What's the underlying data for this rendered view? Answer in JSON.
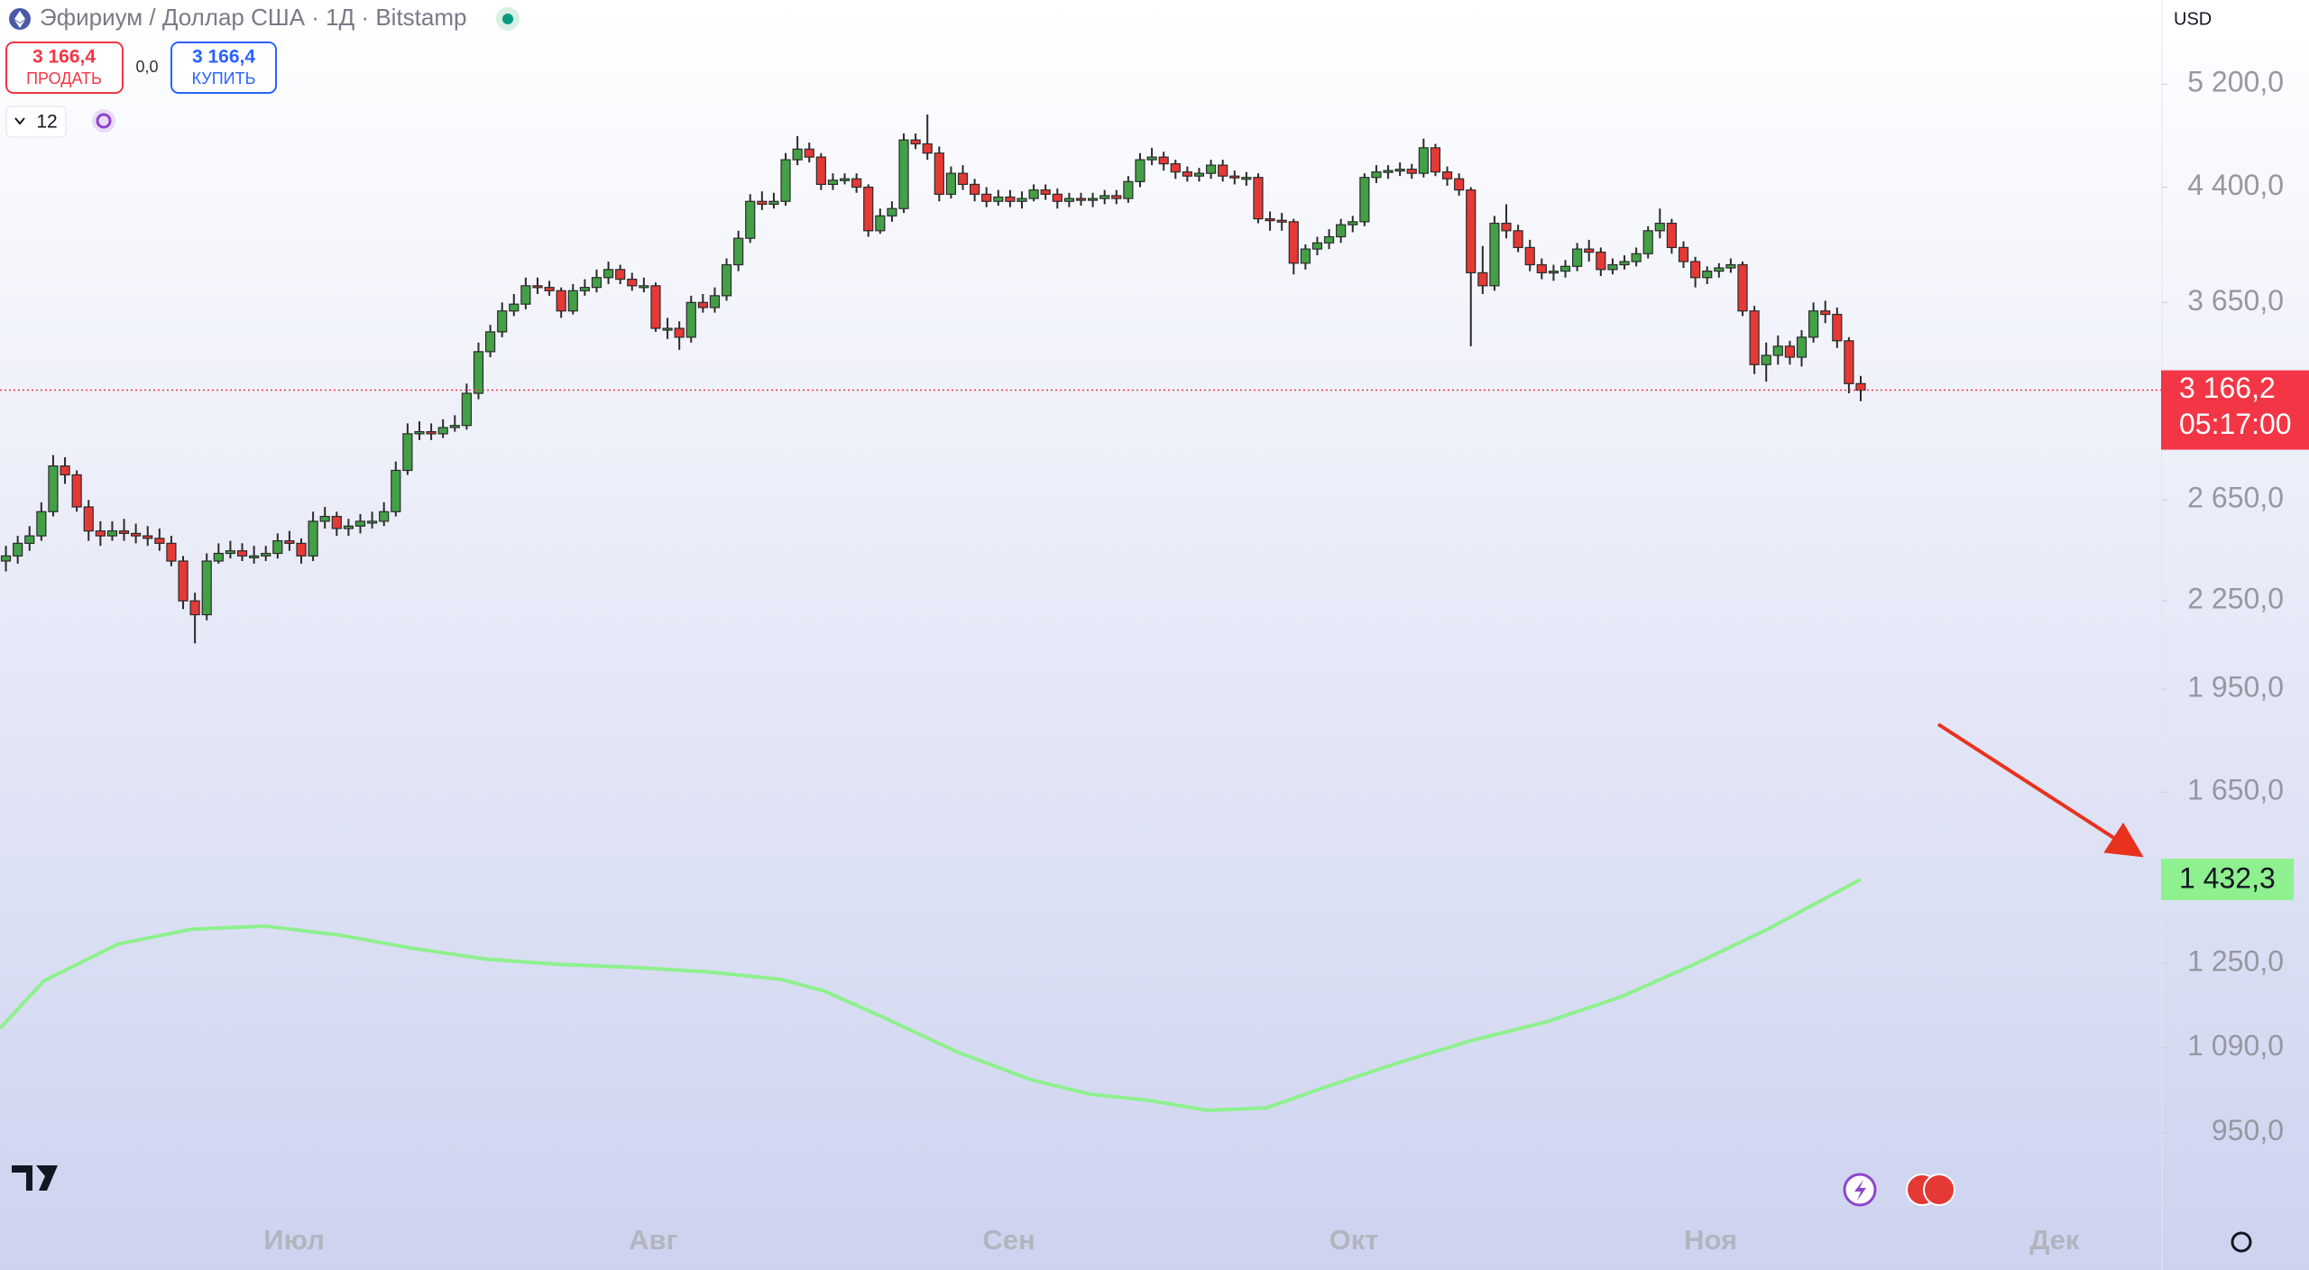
{
  "header": {
    "title": "Эфириум / Доллар США · 1Д · Bitstamp",
    "sell_price": "3 166,4",
    "sell_label": "ПРОДАТЬ",
    "spread": "0,0",
    "buy_price": "3 166,4",
    "buy_label": "КУПИТЬ",
    "interval": "12",
    "currency": "USD"
  },
  "chart_data": {
    "type": "candlestick",
    "log": true,
    "colors": {
      "up": "#43a047",
      "down": "#e53935",
      "outline": "#2b2b2b"
    },
    "open": [
      2400,
      2420,
      2470,
      2500,
      2600,
      2800,
      2760,
      2620,
      2520,
      2500,
      2520,
      2510,
      2500,
      2490,
      2470,
      2400,
      2250,
      2200,
      2400,
      2430,
      2440,
      2420,
      2420,
      2430,
      2480,
      2470,
      2420,
      2560,
      2580,
      2530,
      2540,
      2560,
      2560,
      2600,
      2780,
      2950,
      2960,
      2950,
      2980,
      2990,
      3150,
      3370,
      3480,
      3600,
      3640,
      3750,
      3740,
      3720,
      3600,
      3720,
      3740,
      3800,
      3850,
      3790,
      3750,
      3750,
      3500,
      3500,
      3450,
      3650,
      3620,
      3690,
      3880,
      4050,
      4300,
      4280,
      4300,
      4600,
      4680,
      4620,
      4420,
      4450,
      4460,
      4400,
      4100,
      4200,
      4250,
      4750,
      4720,
      4650,
      4350,
      4500,
      4420,
      4350,
      4300,
      4330,
      4300,
      4320,
      4380,
      4350,
      4300,
      4320,
      4310,
      4320,
      4340,
      4320,
      4440,
      4600,
      4620,
      4570,
      4510,
      4480,
      4500,
      4560,
      4480,
      4470,
      4470,
      4180,
      4170,
      4160,
      3890,
      3980,
      4020,
      4060,
      4140,
      4160,
      4470,
      4510,
      4520,
      4530,
      4500,
      4690,
      4510,
      4460,
      4380,
      3830,
      3750,
      4150,
      4100,
      3990,
      3880,
      3830,
      3840,
      3870,
      3980,
      3960,
      3850,
      3880,
      3900,
      3950,
      4100,
      4150,
      3990,
      3900,
      3800,
      3840,
      3860,
      3880,
      3600,
      3300,
      3350,
      3400,
      3340,
      3450,
      3600,
      3580,
      3430,
      3200
    ],
    "high": [
      2460,
      2500,
      2540,
      2640,
      2850,
      2840,
      2780,
      2650,
      2560,
      2560,
      2570,
      2550,
      2540,
      2530,
      2500,
      2420,
      2280,
      2430,
      2470,
      2480,
      2470,
      2460,
      2460,
      2510,
      2520,
      2490,
      2600,
      2620,
      2600,
      2570,
      2590,
      2600,
      2640,
      2820,
      3000,
      3010,
      3000,
      3020,
      3040,
      3200,
      3420,
      3520,
      3650,
      3700,
      3800,
      3800,
      3780,
      3740,
      3760,
      3790,
      3850,
      3900,
      3880,
      3830,
      3800,
      3770,
      3560,
      3540,
      3690,
      3700,
      3740,
      3920,
      4100,
      4350,
      4370,
      4360,
      4650,
      4780,
      4730,
      4650,
      4500,
      4500,
      4500,
      4420,
      4250,
      4300,
      4800,
      4800,
      4950,
      4700,
      4550,
      4560,
      4460,
      4400,
      4380,
      4380,
      4370,
      4420,
      4420,
      4390,
      4360,
      4360,
      4360,
      4380,
      4380,
      4480,
      4650,
      4690,
      4660,
      4600,
      4550,
      4540,
      4600,
      4600,
      4520,
      4510,
      4500,
      4230,
      4220,
      4180,
      4010,
      4060,
      4110,
      4180,
      4200,
      4500,
      4560,
      4560,
      4580,
      4570,
      4760,
      4720,
      4550,
      4500,
      4400,
      4000,
      4200,
      4280,
      4140,
      4040,
      3920,
      3880,
      3910,
      4020,
      4040,
      3990,
      3920,
      3940,
      3990,
      4130,
      4250,
      4180,
      4030,
      3930,
      3870,
      3890,
      3920,
      3900,
      3630,
      3420,
      3460,
      3430,
      3490,
      3650,
      3660,
      3620,
      3450,
      3240
    ],
    "low": [
      2360,
      2390,
      2440,
      2480,
      2580,
      2720,
      2600,
      2480,
      2460,
      2480,
      2480,
      2470,
      2460,
      2440,
      2380,
      2220,
      2100,
      2180,
      2390,
      2410,
      2400,
      2390,
      2400,
      2410,
      2440,
      2390,
      2400,
      2530,
      2500,
      2500,
      2510,
      2530,
      2540,
      2580,
      2760,
      2920,
      2920,
      2930,
      2960,
      2970,
      3120,
      3340,
      3450,
      3570,
      3610,
      3700,
      3690,
      3560,
      3580,
      3690,
      3710,
      3760,
      3760,
      3720,
      3710,
      3480,
      3440,
      3380,
      3420,
      3590,
      3590,
      3660,
      3840,
      4020,
      4240,
      4250,
      4270,
      4560,
      4580,
      4380,
      4380,
      4420,
      4360,
      4060,
      4080,
      4160,
      4220,
      4680,
      4600,
      4300,
      4320,
      4380,
      4300,
      4260,
      4270,
      4260,
      4250,
      4300,
      4310,
      4250,
      4260,
      4270,
      4260,
      4280,
      4280,
      4290,
      4400,
      4560,
      4520,
      4460,
      4440,
      4440,
      4460,
      4440,
      4420,
      4410,
      4150,
      4100,
      4100,
      3820,
      3850,
      3940,
      3980,
      4020,
      4090,
      4130,
      4430,
      4460,
      4480,
      4460,
      4470,
      4480,
      4410,
      4340,
      3400,
      3700,
      3720,
      4050,
      3960,
      3840,
      3790,
      3780,
      3800,
      3840,
      3900,
      3810,
      3820,
      3850,
      3870,
      3920,
      4050,
      3950,
      3860,
      3740,
      3760,
      3800,
      3830,
      3570,
      3250,
      3210,
      3300,
      3300,
      3290,
      3420,
      3530,
      3390,
      3150,
      3110
    ],
    "close": [
      2420,
      2470,
      2500,
      2600,
      2800,
      2760,
      2620,
      2520,
      2500,
      2520,
      2510,
      2500,
      2490,
      2470,
      2400,
      2250,
      2200,
      2400,
      2430,
      2440,
      2420,
      2420,
      2430,
      2480,
      2470,
      2420,
      2560,
      2580,
      2530,
      2540,
      2560,
      2560,
      2600,
      2780,
      2950,
      2960,
      2950,
      2980,
      2990,
      3150,
      3370,
      3480,
      3600,
      3640,
      3750,
      3740,
      3720,
      3600,
      3720,
      3740,
      3800,
      3850,
      3790,
      3750,
      3750,
      3500,
      3500,
      3450,
      3650,
      3620,
      3690,
      3880,
      4050,
      4300,
      4280,
      4300,
      4600,
      4680,
      4620,
      4420,
      4450,
      4460,
      4400,
      4100,
      4200,
      4250,
      4750,
      4720,
      4650,
      4350,
      4500,
      4420,
      4350,
      4300,
      4330,
      4300,
      4320,
      4380,
      4350,
      4300,
      4320,
      4310,
      4320,
      4340,
      4320,
      4440,
      4600,
      4620,
      4570,
      4510,
      4480,
      4500,
      4560,
      4480,
      4470,
      4470,
      4180,
      4170,
      4160,
      3890,
      3980,
      4020,
      4060,
      4140,
      4160,
      4470,
      4510,
      4520,
      4530,
      4500,
      4690,
      4510,
      4460,
      4380,
      3830,
      3750,
      4150,
      4100,
      3990,
      3880,
      3830,
      3840,
      3870,
      3980,
      3960,
      3850,
      3880,
      3900,
      3950,
      4100,
      4150,
      3990,
      3900,
      3800,
      3840,
      3860,
      3880,
      3600,
      3300,
      3350,
      3400,
      3340,
      3450,
      3600,
      3580,
      3430,
      3200,
      3166.2
    ],
    "last_label": {
      "price": "3 166,2",
      "countdown": "05:17:00",
      "color": "#f23645"
    },
    "lines": [
      {
        "color": "#8ef08e",
        "x": [
          -0.5,
          3.2,
          9.5,
          15.7,
          21.9,
          28.2,
          34.4,
          40.6,
          46.9,
          53.1,
          59.4,
          65.6,
          69.3,
          74.3,
          80.5,
          86.8,
          91.8,
          96.8,
          101.7,
          106.7,
          111.7,
          118,
          124.2,
          130.4,
          136.7,
          142.9,
          149.1,
          157
        ],
        "values": [
          1125,
          1215,
          1290,
          1321,
          1328,
          1309,
          1281,
          1259,
          1248,
          1242,
          1233,
          1218,
          1195,
          1145,
          1083,
          1035,
          1011,
          1001,
          985,
          989,
          1023,
          1065,
          1104,
          1137,
          1184,
          1248,
          1321,
          1432.3
        ],
        "last_label": "1 432,3"
      }
    ],
    "xlim": [
      -0.5,
      182.5
    ],
    "xticks": [
      {
        "value": 24.4,
        "label": "Июл"
      },
      {
        "value": 54.8,
        "label": "Авг"
      },
      {
        "value": 84.9,
        "label": "Сен"
      },
      {
        "value": 114.1,
        "label": "Окт"
      },
      {
        "value": 144.3,
        "label": "Ноя"
      },
      {
        "value": 173.4,
        "label": "Дек"
      }
    ],
    "ylim": [
      835,
      5960
    ],
    "yticks": [
      {
        "value": 5200,
        "label": "5 200,0"
      },
      {
        "value": 4400,
        "label": "4 400,0"
      },
      {
        "value": 3650,
        "label": "3 650,0"
      },
      {
        "value": 2650,
        "label": "2 650,0"
      },
      {
        "value": 2250,
        "label": "2 250,0"
      },
      {
        "value": 1950,
        "label": "1 950,0"
      },
      {
        "value": 1650,
        "label": "1 650,0"
      },
      {
        "value": 1250,
        "label": "1 250,0"
      },
      {
        "value": 1090,
        "label": "1 090,0"
      },
      {
        "value": 950,
        "label": "950,0"
      }
    ]
  }
}
